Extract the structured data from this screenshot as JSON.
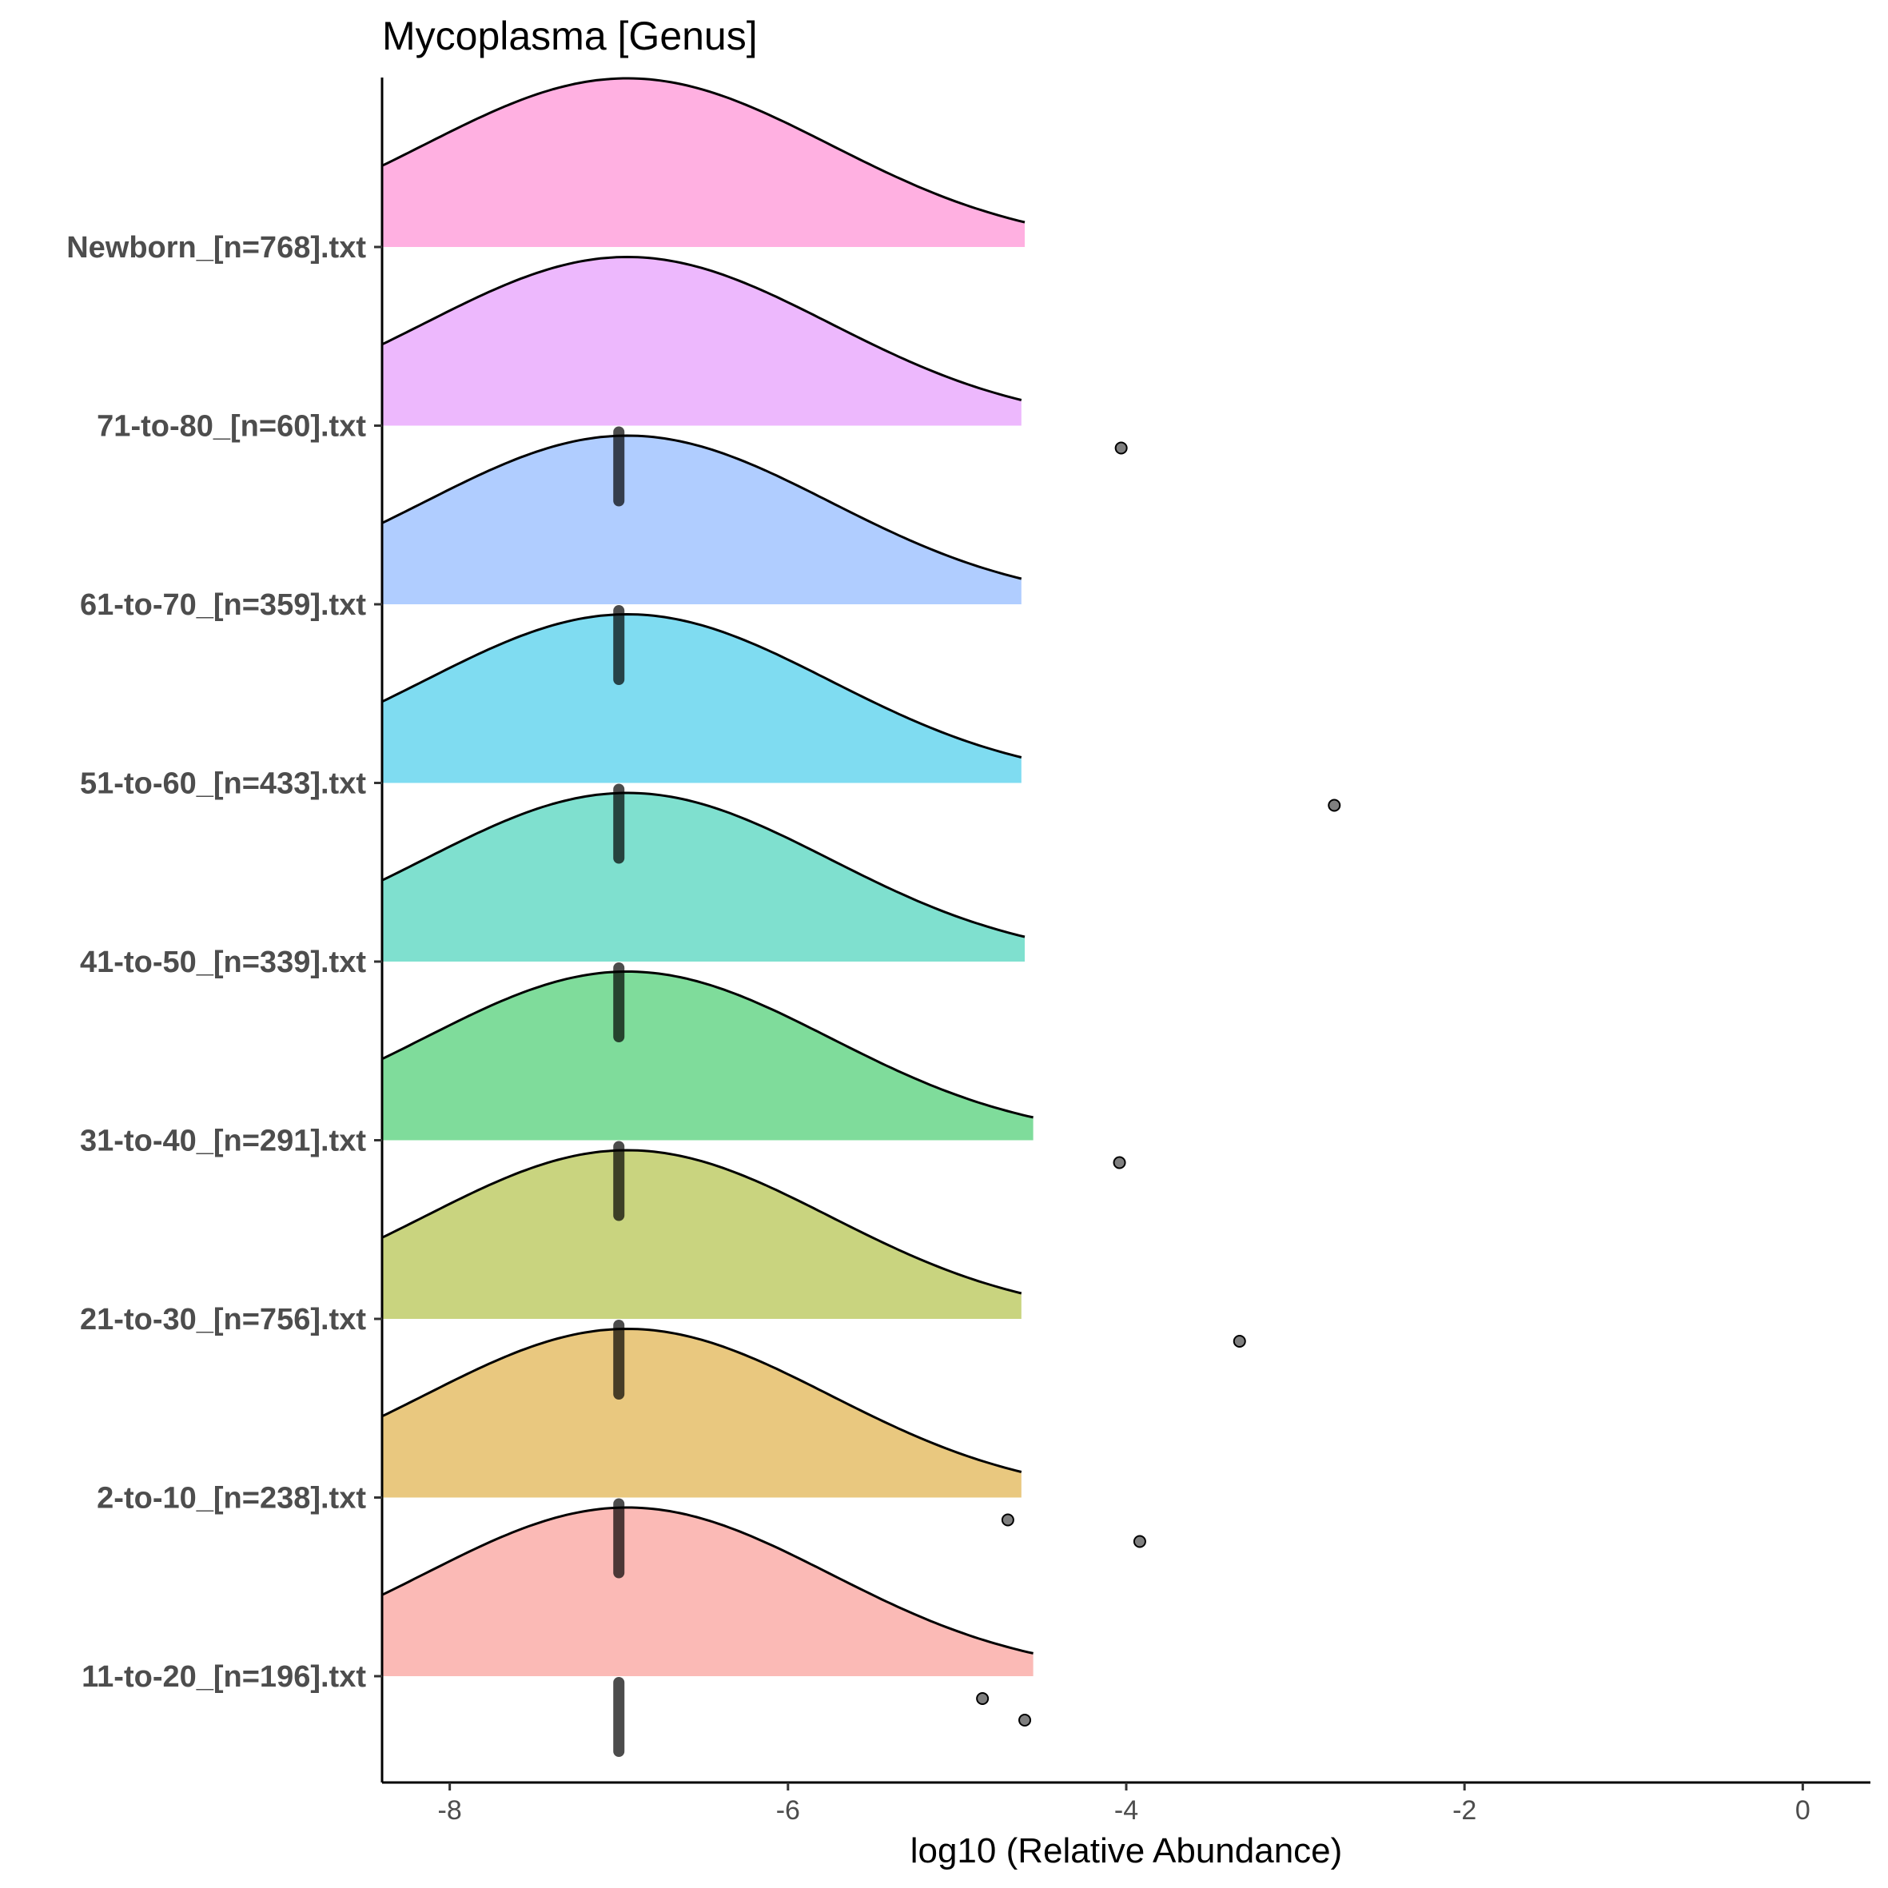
{
  "chart_data": {
    "type": "ridgeline",
    "title": "Mycoplasma [Genus]",
    "xlabel": "log10 (Relative Abundance)",
    "ylabel": "",
    "xlim": [
      -8.4,
      0.4
    ],
    "xticks": [
      -8,
      -6,
      -4,
      -2,
      0
    ],
    "x_tick_labels": [
      "-8",
      "-6",
      "-4",
      "-2",
      "0"
    ],
    "grid": false,
    "legend": "none",
    "categories": [
      "11-to-20_[n=196].txt",
      "2-to-10_[n=238].txt",
      "21-to-30_[n=756].txt",
      "31-to-40_[n=291].txt",
      "41-to-50_[n=339].txt",
      "51-to-60_[n=433].txt",
      "61-to-70_[n=359].txt",
      "71-to-80_[n=60].txt",
      "Newborn_[n=768].txt"
    ],
    "series": [
      {
        "name": "11-to-20_[n=196].txt",
        "color": "#F8766D",
        "density_peak": -6.95,
        "density_sd": 1.2,
        "density_range": [
          -8.4,
          -4.55
        ],
        "median": -7.0,
        "points": [
          -4.85,
          -4.6
        ]
      },
      {
        "name": "2-to-10_[n=238].txt",
        "color": "#D39200",
        "density_peak": -6.95,
        "density_sd": 1.2,
        "density_range": [
          -8.4,
          -4.62
        ],
        "median": -7.0,
        "points": [
          -4.7,
          -3.92
        ]
      },
      {
        "name": "21-to-30_[n=756].txt",
        "color": "#93AA00",
        "density_peak": -6.95,
        "density_sd": 1.2,
        "density_range": [
          -8.4,
          -4.62
        ],
        "median": -7.0,
        "points": [
          -3.33
        ]
      },
      {
        "name": "31-to-40_[n=291].txt",
        "color": "#00BA38",
        "density_peak": -6.95,
        "density_sd": 1.2,
        "density_range": [
          -8.4,
          -4.55
        ],
        "median": -7.0,
        "points": [
          -4.04
        ]
      },
      {
        "name": "41-to-50_[n=339].txt",
        "color": "#00C19F",
        "density_peak": -6.95,
        "density_sd": 1.2,
        "density_range": [
          -8.4,
          -4.6
        ],
        "median": -7.0,
        "points": []
      },
      {
        "name": "51-to-60_[n=433].txt",
        "color": "#00B9E3",
        "density_peak": -6.95,
        "density_sd": 1.2,
        "density_range": [
          -8.4,
          -4.62
        ],
        "median": -7.0,
        "points": [
          -2.77
        ]
      },
      {
        "name": "61-to-70_[n=359].txt",
        "color": "#619CFF",
        "density_peak": -6.95,
        "density_sd": 1.2,
        "density_range": [
          -8.4,
          -4.62
        ],
        "median": -7.0,
        "points": []
      },
      {
        "name": "71-to-80_[n=60].txt",
        "color": "#DB72FB",
        "density_peak": -6.95,
        "density_sd": 1.2,
        "density_range": [
          -8.4,
          -4.62
        ],
        "median": -7.0,
        "points": [
          -4.03
        ]
      },
      {
        "name": "Newborn_[n=768].txt",
        "color": "#FF61C3",
        "density_peak": -6.95,
        "density_sd": 1.2,
        "density_range": [
          -8.4,
          -4.6
        ],
        "median": null,
        "points": []
      }
    ]
  }
}
